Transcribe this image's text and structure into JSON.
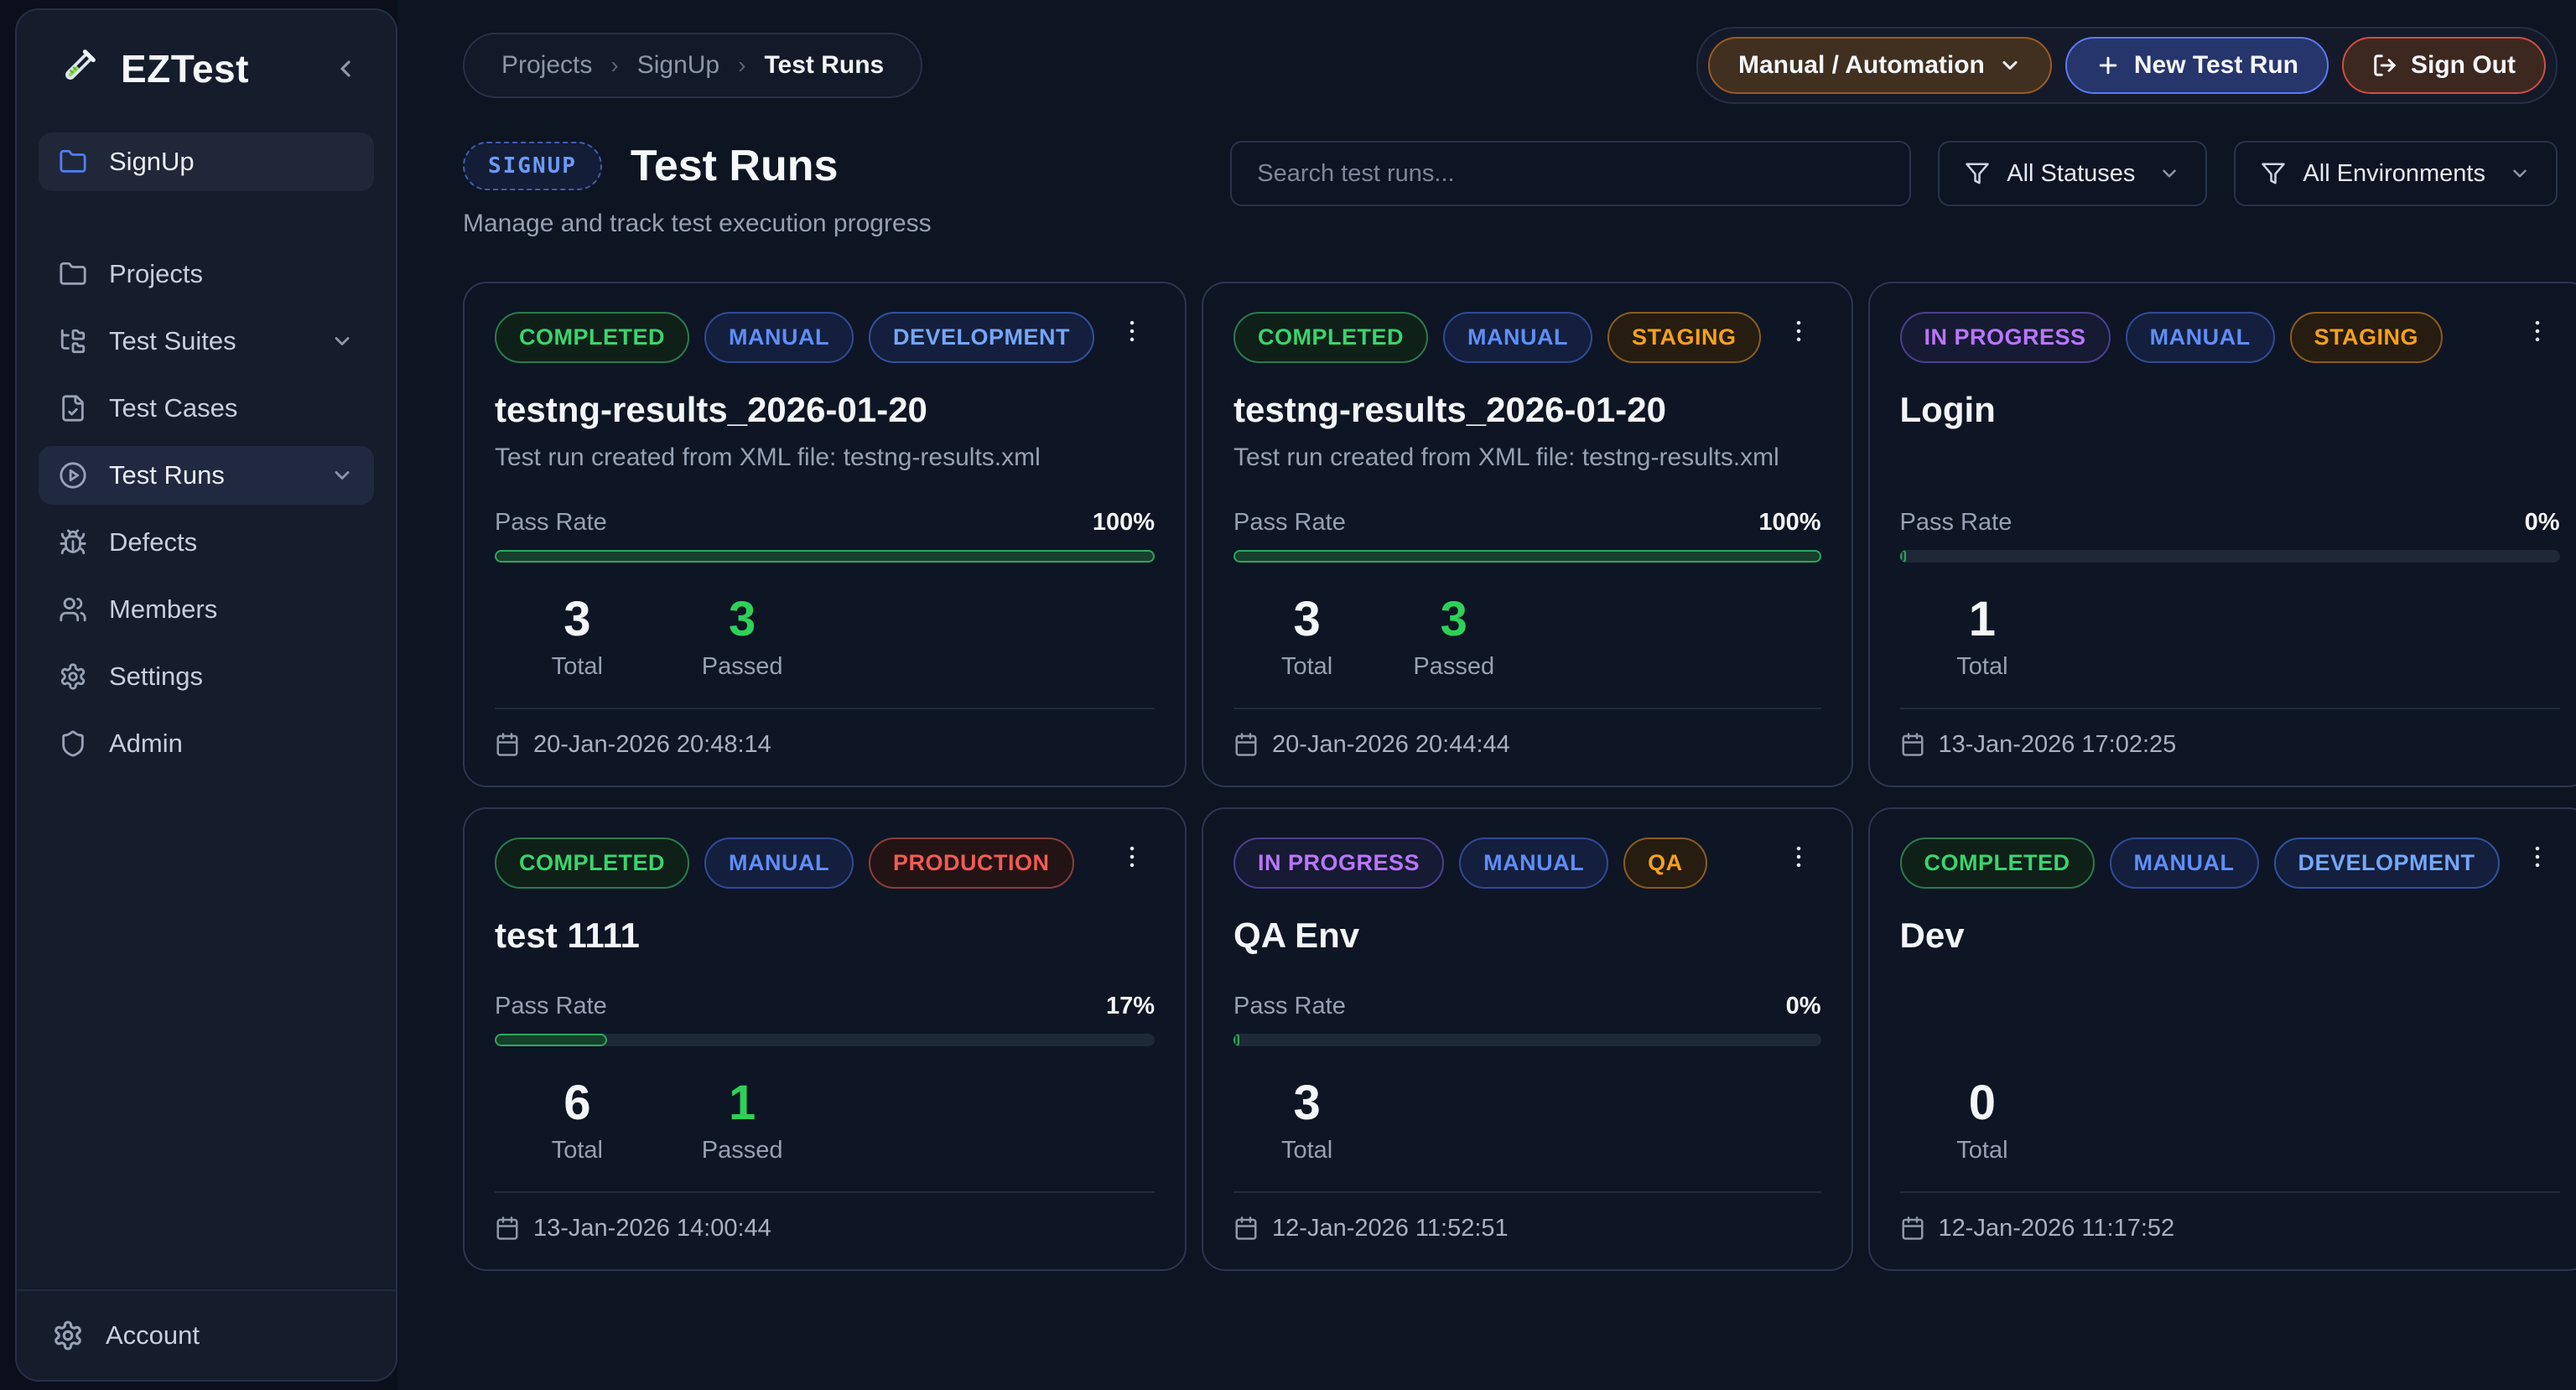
{
  "app": {
    "name": "EZTest"
  },
  "sidebar": {
    "items": [
      {
        "label": "SignUp",
        "icon": "folder",
        "active": true,
        "accent": true,
        "chevron": false,
        "section_end": true
      },
      {
        "label": "Projects",
        "icon": "folder",
        "active": false,
        "chevron": false
      },
      {
        "label": "Test Suites",
        "icon": "folder-tree",
        "active": false,
        "chevron": true
      },
      {
        "label": "Test Cases",
        "icon": "file-check",
        "active": false,
        "chevron": false
      },
      {
        "label": "Test Runs",
        "icon": "play-circle",
        "active": true,
        "chevron": true
      },
      {
        "label": "Defects",
        "icon": "bug",
        "active": false,
        "chevron": false
      },
      {
        "label": "Members",
        "icon": "users",
        "active": false,
        "chevron": false
      },
      {
        "label": "Settings",
        "icon": "gear",
        "active": false,
        "chevron": false
      },
      {
        "label": "Admin",
        "icon": "shield",
        "active": false,
        "chevron": false
      }
    ],
    "footer": {
      "label": "Account",
      "icon": "gear"
    }
  },
  "breadcrumb": {
    "items": [
      "Projects",
      "SignUp",
      "Test Runs"
    ]
  },
  "topbar": {
    "mode_button": "Manual / Automation",
    "new_test_run": "New Test Run",
    "sign_out": "Sign Out"
  },
  "header": {
    "project_badge": "SIGNUP",
    "title": "Test Runs",
    "subtitle": "Manage and track test execution progress"
  },
  "search": {
    "placeholder": "Search test runs..."
  },
  "filters": {
    "status": "All Statuses",
    "environment": "All Environments"
  },
  "labels": {
    "pass_rate": "Pass Rate"
  },
  "colors": {
    "accent_green": "#2ed158",
    "accent_blue": "#5f8ef7",
    "accent_purple": "#b976fb",
    "accent_orange": "#f6a11c",
    "accent_red": "#f05b55"
  },
  "cards": [
    {
      "badges": [
        {
          "text": "COMPLETED",
          "variant": "completed"
        },
        {
          "text": "MANUAL",
          "variant": "manual"
        },
        {
          "text": "DEVELOPMENT",
          "variant": "development"
        }
      ],
      "title": "testng-results_2026-01-20",
      "description": "Test run created from XML file: testng-results.xml",
      "pass_rate_label": "Pass Rate",
      "pass_rate_text": "100%",
      "pass_rate_value": 100,
      "stats": [
        {
          "value": "3",
          "label": "Total",
          "color": "white"
        },
        {
          "value": "3",
          "label": "Passed",
          "color": "green"
        }
      ],
      "date": "20-Jan-2026 20:48:14"
    },
    {
      "badges": [
        {
          "text": "COMPLETED",
          "variant": "completed"
        },
        {
          "text": "MANUAL",
          "variant": "manual"
        },
        {
          "text": "STAGING",
          "variant": "staging"
        }
      ],
      "title": "testng-results_2026-01-20",
      "description": "Test run created from XML file: testng-results.xml",
      "pass_rate_label": "Pass Rate",
      "pass_rate_text": "100%",
      "pass_rate_value": 100,
      "stats": [
        {
          "value": "3",
          "label": "Total",
          "color": "white"
        },
        {
          "value": "3",
          "label": "Passed",
          "color": "green"
        }
      ],
      "date": "20-Jan-2026 20:44:44"
    },
    {
      "badges": [
        {
          "text": "IN PROGRESS",
          "variant": "in-progress"
        },
        {
          "text": "MANUAL",
          "variant": "manual"
        },
        {
          "text": "STAGING",
          "variant": "staging"
        }
      ],
      "title": "Login",
      "description": null,
      "pass_rate_label": "Pass Rate",
      "pass_rate_text": "0%",
      "pass_rate_value": 0,
      "stats": [
        {
          "value": "1",
          "label": "Total",
          "color": "white"
        }
      ],
      "date": "13-Jan-2026 17:02:25"
    },
    {
      "badges": [
        {
          "text": "COMPLETED",
          "variant": "completed"
        },
        {
          "text": "MANUAL",
          "variant": "manual"
        },
        {
          "text": "PRODUCTION",
          "variant": "production"
        }
      ],
      "title": "test 1111",
      "description": null,
      "pass_rate_label": "Pass Rate",
      "pass_rate_text": "17%",
      "pass_rate_value": 17,
      "stats": [
        {
          "value": "6",
          "label": "Total",
          "color": "white"
        },
        {
          "value": "1",
          "label": "Passed",
          "color": "green"
        }
      ],
      "date": "13-Jan-2026 14:00:44"
    },
    {
      "badges": [
        {
          "text": "IN PROGRESS",
          "variant": "in-progress"
        },
        {
          "text": "MANUAL",
          "variant": "manual"
        },
        {
          "text": "QA",
          "variant": "qa"
        }
      ],
      "title": "QA Env",
      "description": null,
      "pass_rate_label": "Pass Rate",
      "pass_rate_text": "0%",
      "pass_rate_value": 0,
      "stats": [
        {
          "value": "3",
          "label": "Total",
          "color": "white"
        }
      ],
      "date": "12-Jan-2026 11:52:51"
    },
    {
      "badges": [
        {
          "text": "COMPLETED",
          "variant": "completed"
        },
        {
          "text": "MANUAL",
          "variant": "manual"
        },
        {
          "text": "DEVELOPMENT",
          "variant": "development"
        }
      ],
      "title": "Dev",
      "description": null,
      "pass_rate_label": null,
      "pass_rate_text": null,
      "pass_rate_value": null,
      "stats": [
        {
          "value": "0",
          "label": "Total",
          "color": "white"
        }
      ],
      "date": "12-Jan-2026 11:17:52"
    }
  ]
}
